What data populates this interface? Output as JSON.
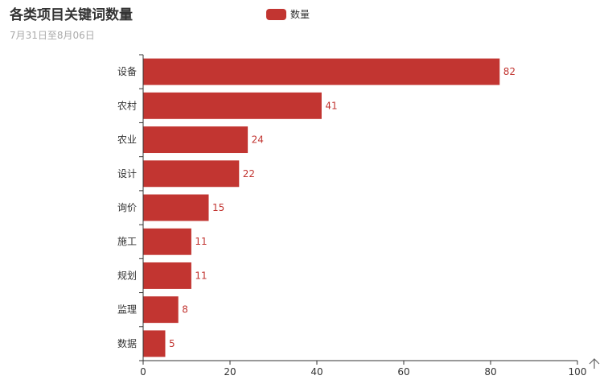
{
  "title": "各类项目关键词数量",
  "subtitle": "7月31日至8月06日",
  "toolbox": {
    "icon": "arrow-up-icon"
  },
  "colors": {
    "bar": "#c23531",
    "title": "#333333",
    "subtitle": "#aaaaaa",
    "axis": "#333333",
    "label": "#c23531"
  },
  "chart_data": {
    "type": "bar",
    "orientation": "horizontal",
    "title": "各类项目关键词数量",
    "subtitle": "7月31日至8月06日",
    "categories": [
      "设备",
      "农村",
      "农业",
      "设计",
      "询价",
      "施工",
      "规划",
      "监理",
      "数据"
    ],
    "series": [
      {
        "name": "数量",
        "values": [
          82,
          41,
          24,
          22,
          15,
          11,
          11,
          8,
          5
        ]
      }
    ],
    "xlim": [
      0,
      100
    ],
    "xticks": [
      0,
      20,
      40,
      60,
      80,
      100
    ],
    "xlabel": "",
    "ylabel": "",
    "grid": false,
    "legend": "top-center",
    "data_labels": true
  }
}
